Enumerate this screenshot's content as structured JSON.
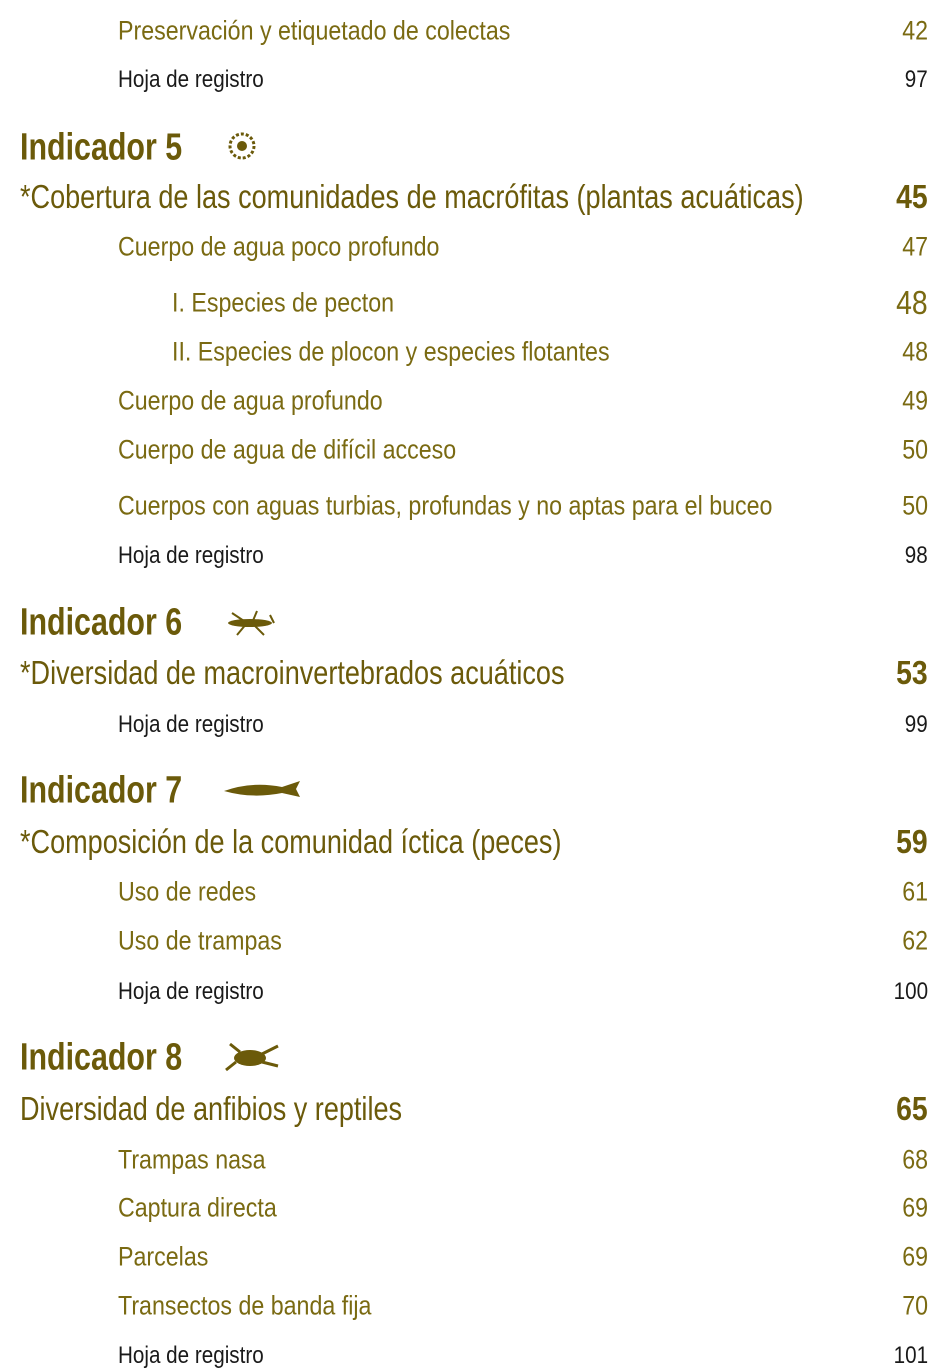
{
  "top": {
    "items": [
      {
        "text": "Preservación y etiquetado de colectas",
        "page": 42
      }
    ],
    "sheet": {
      "text": "Hoja de registro",
      "page": 97
    }
  },
  "sections": [
    {
      "heading": "Indicador 5",
      "title": "*Cobertura de las comunidades de macrófitas (plantas acuáticas)",
      "page": 45,
      "items": [
        {
          "text": "Cuerpo de agua poco profundo",
          "page": 47,
          "items": [
            {
              "text": "I. Especies de pecton",
              "page": 48
            },
            {
              "text": "II. Especies de plocon y especies flotantes",
              "page": 48
            }
          ]
        },
        {
          "text": "Cuerpo de agua profundo",
          "page": 49
        },
        {
          "text": "Cuerpo de agua de difícil acceso",
          "page": 50
        },
        {
          "text": "Cuerpos con aguas turbias, profundas y no aptas para el buceo",
          "page": 50
        }
      ],
      "sheet": {
        "text": "Hoja de registro",
        "page": 98
      }
    },
    {
      "heading": "Indicador 6",
      "title": "*Diversidad de macroinvertebrados acuáticos",
      "page": 53,
      "items": [],
      "sheet": {
        "text": "Hoja de registro",
        "page": 99
      }
    },
    {
      "heading": "Indicador 7",
      "title": "*Composición de la comunidad íctica (peces)",
      "page": 59,
      "items": [
        {
          "text": "Uso de redes",
          "page": 61
        },
        {
          "text": "Uso de trampas",
          "page": 62
        }
      ],
      "sheet": {
        "text": "Hoja de registro",
        "page": 100
      }
    },
    {
      "heading": "Indicador 8",
      "title": "Diversidad de anfibios y reptiles",
      "page": 65,
      "items": [
        {
          "text": "Trampas nasa",
          "page": 68
        },
        {
          "text": "Captura directa",
          "page": 69
        },
        {
          "text": "Parcelas",
          "page": 69
        },
        {
          "text": "Transectos de banda fija",
          "page": 70
        }
      ],
      "sheet": {
        "text": "Hoja de registro",
        "page": 101
      }
    }
  ]
}
